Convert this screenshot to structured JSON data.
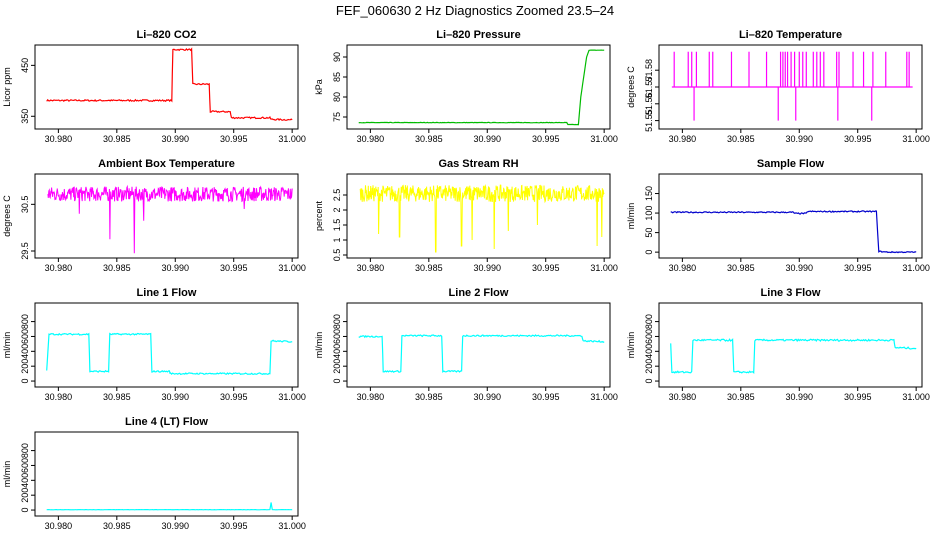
{
  "figure_title": "FEF_060630  2 Hz Diagnostics Zoomed 23.5–24",
  "chart_data": [
    {
      "id": "co2",
      "type": "line",
      "title": "Li–820 CO2",
      "ylabel": "Licor ppm",
      "color": "#ff0000",
      "xlim": [
        30.978,
        31.0005
      ],
      "ylim": [
        325,
        490
      ],
      "xticks": [
        30.98,
        30.985,
        30.99,
        30.995,
        31.0
      ],
      "xtick_labels": [
        "30.980",
        "30.985",
        "30.990",
        "30.995",
        "31.000"
      ],
      "yticks": [
        350,
        450
      ],
      "ytick_labels": [
        "350",
        "450"
      ],
      "x": [
        30.979,
        30.9897,
        30.9898,
        30.9914,
        30.9915,
        30.9929,
        30.993,
        30.9947,
        30.9948,
        30.9981,
        30.9982,
        31.0
      ],
      "y": [
        381,
        381,
        481,
        481,
        413,
        413,
        359,
        359,
        347,
        347,
        344,
        343
      ],
      "noise": 1.5
    },
    {
      "id": "pressure",
      "type": "line",
      "title": "Li–820 Pressure",
      "ylabel": "kPa",
      "color": "#00bb00",
      "xlim": [
        30.978,
        31.0005
      ],
      "ylim": [
        72,
        93
      ],
      "xticks": [
        30.98,
        30.985,
        30.99,
        30.995,
        31.0
      ],
      "xtick_labels": [
        "30.980",
        "30.985",
        "30.990",
        "30.995",
        "31.000"
      ],
      "yticks": [
        75,
        80,
        85,
        90
      ],
      "ytick_labels": [
        "75",
        "80",
        "85",
        "90"
      ],
      "x": [
        30.979,
        30.9968,
        30.9969,
        30.9978,
        30.998,
        30.9985,
        30.9987,
        31.0
      ],
      "y": [
        73.6,
        73.6,
        73.1,
        73.1,
        80.0,
        90.0,
        91.7,
        91.7
      ],
      "noise": 0.05
    },
    {
      "id": "li820temp",
      "type": "line",
      "title": "Li–820 Temperature",
      "ylabel": "degrees C",
      "color": "#ff00ff",
      "xlim": [
        30.978,
        31.0005
      ],
      "ylim": [
        51.545,
        51.595
      ],
      "xticks": [
        30.98,
        30.985,
        30.99,
        30.995,
        31.0
      ],
      "xtick_labels": [
        "30.980",
        "30.985",
        "30.990",
        "30.995",
        "31.000"
      ],
      "yticks": [
        51.55,
        51.56,
        51.57,
        51.58
      ],
      "ytick_labels": [
        "51.55",
        "51.56",
        "51.57",
        "51.58"
      ],
      "baseline": 51.57,
      "high": 51.591,
      "low": 51.55,
      "spikes_up": [
        30.9793,
        30.9805,
        30.9808,
        30.9812,
        30.9823,
        30.9826,
        30.9842,
        30.9857,
        30.9872,
        30.9884,
        30.9886,
        30.9888,
        30.989,
        30.9893,
        30.9896,
        30.99,
        30.9903,
        30.9906,
        30.9912,
        30.9915,
        30.9918,
        30.9921,
        30.9932,
        30.9934,
        30.9946,
        30.9955,
        30.9963,
        30.9974,
        30.9992,
        30.9994
      ],
      "spikes_down": [
        30.981,
        30.9962,
        30.9882,
        30.9897,
        30.9933
      ]
    },
    {
      "id": "ambient",
      "type": "line",
      "title": "Ambient Box Temperature",
      "ylabel": "degrees C",
      "color": "#ff00ff",
      "xlim": [
        30.978,
        31.0005
      ],
      "ylim": [
        29.35,
        31.15
      ],
      "xticks": [
        30.98,
        30.985,
        30.99,
        30.995,
        31.0
      ],
      "xtick_labels": [
        "30.980",
        "30.985",
        "30.990",
        "30.995",
        "31.000"
      ],
      "yticks": [
        29.5,
        30.5
      ],
      "ytick_labels": [
        "29.5",
        "30.5"
      ],
      "base": 30.72,
      "noise": 0.16,
      "dips": [
        [
          30.9844,
          29.75
        ],
        [
          30.9865,
          29.45
        ],
        [
          30.9873,
          30.15
        ],
        [
          30.9818,
          30.3
        ],
        [
          30.9959,
          30.4
        ]
      ]
    },
    {
      "id": "rh",
      "type": "line",
      "title": "Gas Stream RH",
      "ylabel": "percent",
      "color": "#ffff00",
      "xlim": [
        30.978,
        31.0005
      ],
      "ylim": [
        0.4,
        3.2
      ],
      "xticks": [
        30.98,
        30.985,
        30.99,
        30.995,
        31.0
      ],
      "xtick_labels": [
        "30.980",
        "30.985",
        "30.990",
        "30.995",
        "31.000"
      ],
      "yticks": [
        0.5,
        1.0,
        1.5,
        2.0,
        2.5
      ],
      "ytick_labels": [
        "0.5",
        "1",
        "1.5",
        "2",
        "2.5"
      ],
      "base": 2.55,
      "noise": 0.28,
      "dips": [
        [
          30.9807,
          1.2
        ],
        [
          30.9825,
          1.1
        ],
        [
          30.9856,
          0.6
        ],
        [
          30.9878,
          0.8
        ],
        [
          30.9887,
          1.0
        ],
        [
          30.9906,
          0.7
        ],
        [
          30.9918,
          1.3
        ],
        [
          30.9943,
          1.5
        ],
        [
          30.9994,
          0.8
        ],
        [
          30.9998,
          1.1
        ]
      ]
    },
    {
      "id": "sample",
      "type": "line",
      "title": "Sample Flow",
      "ylabel": "ml/min",
      "color": "#0000cc",
      "xlim": [
        30.978,
        31.0005
      ],
      "ylim": [
        -15,
        200
      ],
      "xticks": [
        30.98,
        30.985,
        30.99,
        30.995,
        31.0
      ],
      "xtick_labels": [
        "30.980",
        "30.985",
        "30.990",
        "30.995",
        "31.000"
      ],
      "yticks": [
        0,
        50,
        100,
        150
      ],
      "ytick_labels": [
        "0",
        "50",
        "100",
        "150"
      ],
      "x": [
        30.979,
        30.9895,
        30.9896,
        30.9906,
        30.9907,
        30.9966,
        30.9968,
        30.9975,
        31.0
      ],
      "y": [
        102,
        102,
        99,
        99,
        104,
        104,
        2,
        0,
        0
      ],
      "noise": 1.5
    },
    {
      "id": "line1",
      "type": "line",
      "title": "Line 1 Flow",
      "ylabel": "ml/min",
      "color": "#00ffff",
      "xlim": [
        30.978,
        31.0005
      ],
      "ylim": [
        -80,
        1050
      ],
      "xticks": [
        30.98,
        30.985,
        30.99,
        30.995,
        31.0
      ],
      "xtick_labels": [
        "30.980",
        "30.985",
        "30.990",
        "30.995",
        "31.000"
      ],
      "yticks": [
        0,
        200,
        400,
        600,
        800
      ],
      "ytick_labels": [
        "0",
        "200",
        "400",
        "600",
        "800"
      ],
      "x": [
        30.979,
        30.9792,
        30.9826,
        30.9827,
        30.9843,
        30.9844,
        30.9879,
        30.988,
        30.9895,
        30.9896,
        30.9981,
        30.9982,
        31.0
      ],
      "y": [
        150,
        630,
        630,
        130,
        130,
        630,
        630,
        130,
        130,
        100,
        100,
        540,
        530
      ],
      "noise": 10
    },
    {
      "id": "line2",
      "type": "line",
      "title": "Line 2 Flow",
      "ylabel": "ml/min",
      "color": "#00ffff",
      "xlim": [
        30.978,
        31.0005
      ],
      "ylim": [
        -80,
        1050
      ],
      "xticks": [
        30.98,
        30.985,
        30.99,
        30.995,
        31.0
      ],
      "xtick_labels": [
        "30.980",
        "30.985",
        "30.990",
        "30.995",
        "31.000"
      ],
      "yticks": [
        0,
        200,
        400,
        600,
        800
      ],
      "ytick_labels": [
        "0",
        "200",
        "400",
        "600",
        "800"
      ],
      "x": [
        30.979,
        30.981,
        30.9811,
        30.9826,
        30.9827,
        30.9861,
        30.9862,
        30.9878,
        30.9879,
        30.9981,
        30.9982,
        31.0
      ],
      "y": [
        600,
        600,
        130,
        130,
        610,
        610,
        130,
        130,
        610,
        610,
        540,
        530
      ],
      "noise": 10
    },
    {
      "id": "line3",
      "type": "line",
      "title": "Line 3 Flow",
      "ylabel": "ml/min",
      "color": "#00ffff",
      "xlim": [
        30.978,
        31.0005
      ],
      "ylim": [
        -80,
        1050
      ],
      "xticks": [
        30.98,
        30.985,
        30.99,
        30.995,
        31.0
      ],
      "xtick_labels": [
        "30.980",
        "30.985",
        "30.990",
        "30.995",
        "31.000"
      ],
      "yticks": [
        0,
        200,
        400,
        600,
        800
      ],
      "ytick_labels": [
        "0",
        "200",
        "400",
        "600",
        "800"
      ],
      "x": [
        30.979,
        30.9791,
        30.9808,
        30.9809,
        30.9843,
        30.9844,
        30.9861,
        30.9862,
        30.9981,
        30.9982,
        31.0
      ],
      "y": [
        500,
        120,
        120,
        550,
        550,
        120,
        120,
        550,
        550,
        450,
        440
      ],
      "noise": 12
    },
    {
      "id": "line4",
      "type": "line",
      "title": "Line 4 (LT) Flow",
      "ylabel": "ml/min",
      "color": "#00ffff",
      "xlim": [
        30.978,
        31.0005
      ],
      "ylim": [
        -80,
        1050
      ],
      "xticks": [
        30.98,
        30.985,
        30.99,
        30.995,
        31.0
      ],
      "xtick_labels": [
        "30.980",
        "30.985",
        "30.990",
        "30.995",
        "31.000"
      ],
      "yticks": [
        0,
        200,
        400,
        600,
        800
      ],
      "ytick_labels": [
        "0",
        "200",
        "400",
        "600",
        "800"
      ],
      "x": [
        30.979,
        30.9981,
        30.9982,
        30.9983,
        31.0
      ],
      "y": [
        5,
        5,
        100,
        5,
        5
      ],
      "noise": 1.5
    }
  ]
}
